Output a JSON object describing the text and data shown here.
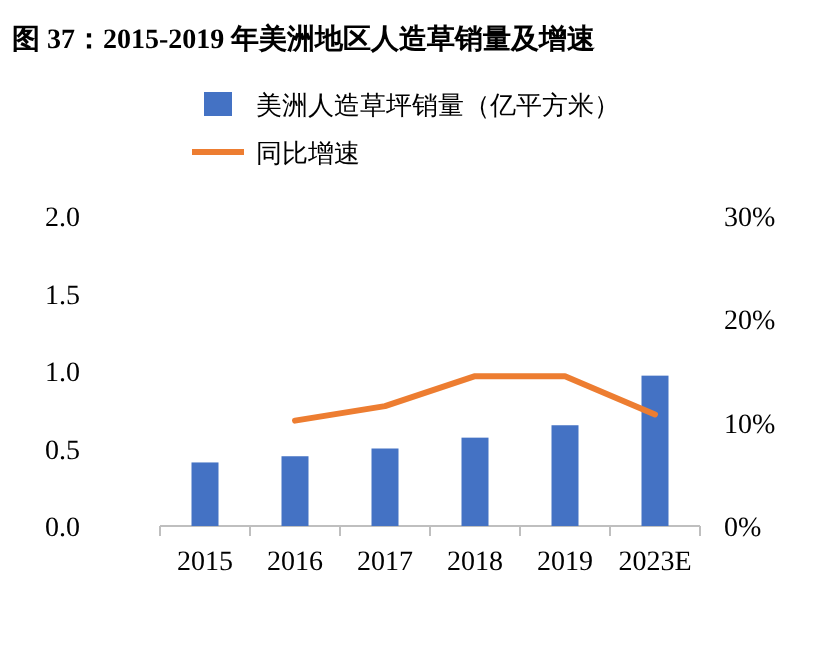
{
  "chart_data": {
    "type": "bar",
    "title": "图 37：2015-2019 年美洲地区人造草销量及增速",
    "categories": [
      "2015",
      "2016",
      "2017",
      "2018",
      "2019",
      "2023E"
    ],
    "series": [
      {
        "name": "美洲人造草坪销量（亿平方米）",
        "color": "#4472c4",
        "values": [
          0.41,
          0.45,
          0.5,
          0.57,
          0.65,
          0.97
        ]
      },
      {
        "name": "同比增速",
        "color": "#ed7d31",
        "type": "line",
        "axis": "y2",
        "values": [
          null,
          10.2,
          11.6,
          14.5,
          14.5,
          10.8
        ]
      }
    ],
    "ylim": [
      0,
      2
    ],
    "yticks": [
      {
        "value": 0,
        "label": "0.0"
      },
      {
        "value": 0.5,
        "label": "0.5"
      },
      {
        "value": 1,
        "label": "1.0"
      },
      {
        "value": 1.5,
        "label": "1.5"
      },
      {
        "value": 2,
        "label": "2.0"
      }
    ],
    "y2lim": [
      0,
      30
    ],
    "y2ticks": [
      {
        "value": 0,
        "label": "0%"
      },
      {
        "value": 10,
        "label": "10%"
      },
      {
        "value": 20,
        "label": "20%"
      },
      {
        "value": 30,
        "label": "30%"
      }
    ],
    "grid": false,
    "legend": "top",
    "marker": "none"
  }
}
